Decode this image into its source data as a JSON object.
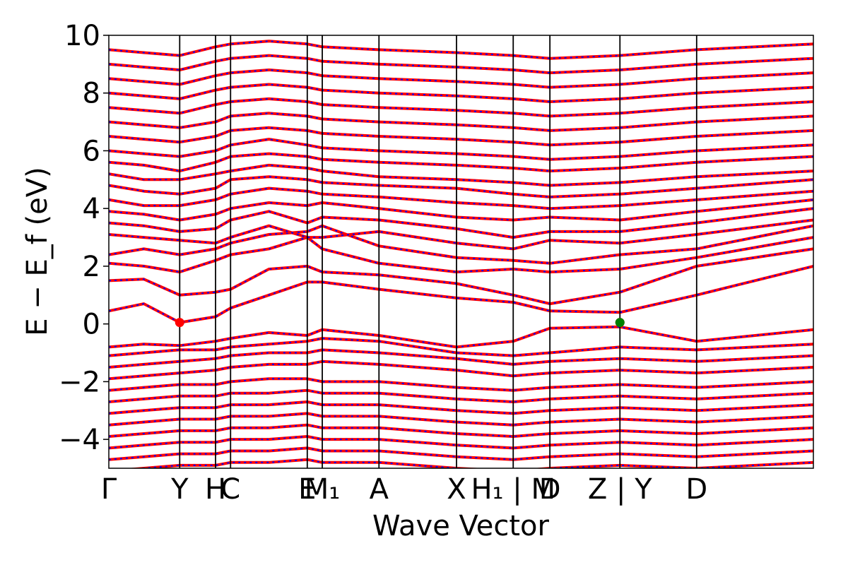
{
  "chart_data": {
    "type": "line",
    "title": "",
    "xlabel": "Wave Vector",
    "ylabel": "E − E_f (eV)",
    "ylim": [
      -5,
      10
    ],
    "yticks": [
      -4,
      -2,
      0,
      2,
      4,
      6,
      8,
      10
    ],
    "ytick_labels": [
      "−4",
      "−2",
      "0",
      "2",
      "4",
      "6",
      "8",
      "10"
    ],
    "xlim": [
      0,
      8.45
    ],
    "high_symmetry_points": [
      {
        "pos": 0.0,
        "label": "Γ"
      },
      {
        "pos": 0.85,
        "label": "Y"
      },
      {
        "pos": 1.28,
        "label": "H"
      },
      {
        "pos": 1.46,
        "label": "C"
      },
      {
        "pos": 2.38,
        "label": "E"
      },
      {
        "pos": 2.56,
        "label": "M₁"
      },
      {
        "pos": 3.24,
        "label": "A"
      },
      {
        "pos": 4.17,
        "label": "X"
      },
      {
        "pos": 4.85,
        "label": "H₁ | M"
      },
      {
        "pos": 5.29,
        "label": "D"
      },
      {
        "pos": 6.13,
        "label": "Z | Y"
      },
      {
        "pos": 7.05,
        "label": "D"
      }
    ],
    "series": [
      {
        "color": "#ff0000",
        "style": "solid"
      },
      {
        "color": "#0000ff",
        "style": "dotted"
      }
    ],
    "markers": [
      {
        "x": 0.85,
        "y": 0.05,
        "color": "#ff0000"
      },
      {
        "x": 6.13,
        "y": 0.05,
        "color": "#ff0000"
      },
      {
        "x": 6.13,
        "y": 0.05,
        "color": "#008000"
      }
    ],
    "bands": [
      {
        "e": [
          0.45,
          0.7,
          0.05,
          0.25,
          0.55,
          1.0,
          1.45,
          1.45,
          1.2,
          0.9,
          0.75,
          0.45,
          0.4,
          1.0,
          2.0
        ]
      },
      {
        "e": [
          1.5,
          1.55,
          1.0,
          1.1,
          1.2,
          1.9,
          2.0,
          1.8,
          1.7,
          1.4,
          1.0,
          0.7,
          1.1,
          2.0,
          2.6
        ]
      },
      {
        "e": [
          2.1,
          2.0,
          1.8,
          2.2,
          2.4,
          2.6,
          3.0,
          2.6,
          2.1,
          1.8,
          1.9,
          1.8,
          1.9,
          2.3,
          3.0
        ]
      },
      {
        "e": [
          2.4,
          2.6,
          2.4,
          2.6,
          2.8,
          3.1,
          3.2,
          3.4,
          2.7,
          2.3,
          2.2,
          2.1,
          2.4,
          2.6,
          3.4
        ]
      },
      {
        "e": [
          3.1,
          3.0,
          2.9,
          2.8,
          3.0,
          3.4,
          3.0,
          3.0,
          3.2,
          2.8,
          2.6,
          2.9,
          2.8,
          3.1,
          3.6
        ]
      },
      {
        "e": [
          3.5,
          3.4,
          3.2,
          3.3,
          3.6,
          3.9,
          3.5,
          3.7,
          3.6,
          3.3,
          3.0,
          3.2,
          3.2,
          3.5,
          4.0
        ]
      },
      {
        "e": [
          3.9,
          3.8,
          3.6,
          3.8,
          4.0,
          4.2,
          4.1,
          4.2,
          4.0,
          3.7,
          3.6,
          3.7,
          3.6,
          3.9,
          4.3
        ]
      },
      {
        "e": [
          4.3,
          4.1,
          4.1,
          4.3,
          4.5,
          4.7,
          4.6,
          4.5,
          4.4,
          4.2,
          4.1,
          4.0,
          4.1,
          4.3,
          4.6
        ]
      },
      {
        "e": [
          4.8,
          4.6,
          4.5,
          4.7,
          5.0,
          5.1,
          5.0,
          4.9,
          4.8,
          4.7,
          4.5,
          4.4,
          4.5,
          4.7,
          5.0
        ]
      },
      {
        "e": [
          5.2,
          5.0,
          5.0,
          5.2,
          5.3,
          5.5,
          5.4,
          5.3,
          5.1,
          5.0,
          4.9,
          4.8,
          4.9,
          5.1,
          5.3
        ]
      },
      {
        "e": [
          5.6,
          5.5,
          5.3,
          5.6,
          5.8,
          5.9,
          5.8,
          5.7,
          5.6,
          5.5,
          5.4,
          5.3,
          5.4,
          5.6,
          5.8
        ]
      },
      {
        "e": [
          6.0,
          5.9,
          5.8,
          6.0,
          6.2,
          6.4,
          6.2,
          6.1,
          6.0,
          5.9,
          5.8,
          5.7,
          5.8,
          6.0,
          6.2
        ]
      },
      {
        "e": [
          6.5,
          6.4,
          6.3,
          6.5,
          6.7,
          6.8,
          6.7,
          6.6,
          6.5,
          6.4,
          6.3,
          6.2,
          6.3,
          6.5,
          6.7
        ]
      },
      {
        "e": [
          7.0,
          6.9,
          6.8,
          7.0,
          7.2,
          7.3,
          7.2,
          7.1,
          7.0,
          6.9,
          6.8,
          6.7,
          6.8,
          7.0,
          7.2
        ]
      },
      {
        "e": [
          7.5,
          7.4,
          7.3,
          7.6,
          7.7,
          7.8,
          7.7,
          7.6,
          7.5,
          7.4,
          7.3,
          7.2,
          7.3,
          7.5,
          7.7
        ]
      },
      {
        "e": [
          8.0,
          7.9,
          7.8,
          8.1,
          8.2,
          8.3,
          8.2,
          8.1,
          8.0,
          7.9,
          7.8,
          7.7,
          7.8,
          8.0,
          8.2
        ]
      },
      {
        "e": [
          8.5,
          8.4,
          8.3,
          8.6,
          8.7,
          8.8,
          8.7,
          8.6,
          8.5,
          8.4,
          8.3,
          8.2,
          8.3,
          8.5,
          8.7
        ]
      },
      {
        "e": [
          9.0,
          8.9,
          8.8,
          9.1,
          9.2,
          9.3,
          9.2,
          9.1,
          9.0,
          8.9,
          8.8,
          8.7,
          8.8,
          9.0,
          9.2
        ]
      },
      {
        "e": [
          9.5,
          9.4,
          9.3,
          9.6,
          9.7,
          9.8,
          9.7,
          9.6,
          9.5,
          9.4,
          9.3,
          9.2,
          9.3,
          9.5,
          9.7
        ]
      },
      {
        "e": [
          -0.8,
          -0.7,
          -0.75,
          -0.6,
          -0.5,
          -0.3,
          -0.4,
          -0.2,
          -0.4,
          -0.8,
          -0.6,
          -0.15,
          -0.1,
          -0.6,
          -0.2
        ]
      },
      {
        "e": [
          -1.1,
          -1.0,
          -0.9,
          -0.9,
          -0.8,
          -0.7,
          -0.6,
          -0.5,
          -0.6,
          -1.0,
          -1.1,
          -1.0,
          -0.8,
          -0.9,
          -0.7
        ]
      },
      {
        "e": [
          -1.5,
          -1.4,
          -1.3,
          -1.2,
          -1.1,
          -1.0,
          -1.0,
          -0.9,
          -1.0,
          -1.2,
          -1.4,
          -1.3,
          -1.2,
          -1.3,
          -1.1
        ]
      },
      {
        "e": [
          -1.9,
          -1.8,
          -1.7,
          -1.6,
          -1.5,
          -1.4,
          -1.4,
          -1.3,
          -1.4,
          -1.6,
          -1.8,
          -1.7,
          -1.6,
          -1.7,
          -1.5
        ]
      },
      {
        "e": [
          -2.3,
          -2.2,
          -2.1,
          -2.1,
          -2.0,
          -1.9,
          -1.9,
          -2.0,
          -2.0,
          -2.2,
          -2.3,
          -2.2,
          -2.1,
          -2.2,
          -2.0
        ]
      },
      {
        "e": [
          -2.7,
          -2.6,
          -2.5,
          -2.5,
          -2.4,
          -2.4,
          -2.3,
          -2.4,
          -2.4,
          -2.6,
          -2.7,
          -2.6,
          -2.5,
          -2.6,
          -2.4
        ]
      },
      {
        "e": [
          -3.1,
          -3.0,
          -2.9,
          -2.9,
          -2.8,
          -2.8,
          -2.7,
          -2.8,
          -2.8,
          -3.0,
          -3.1,
          -3.0,
          -2.9,
          -3.0,
          -2.8
        ]
      },
      {
        "e": [
          -3.5,
          -3.4,
          -3.3,
          -3.3,
          -3.2,
          -3.2,
          -3.1,
          -3.2,
          -3.2,
          -3.4,
          -3.5,
          -3.4,
          -3.3,
          -3.4,
          -3.2
        ]
      },
      {
        "e": [
          -3.9,
          -3.8,
          -3.7,
          -3.7,
          -3.6,
          -3.6,
          -3.5,
          -3.6,
          -3.6,
          -3.8,
          -3.9,
          -3.8,
          -3.7,
          -3.8,
          -3.6
        ]
      },
      {
        "e": [
          -4.3,
          -4.2,
          -4.1,
          -4.1,
          -4.0,
          -4.0,
          -3.9,
          -4.0,
          -4.0,
          -4.2,
          -4.3,
          -4.2,
          -4.1,
          -4.2,
          -4.0
        ]
      },
      {
        "e": [
          -4.7,
          -4.6,
          -4.5,
          -4.5,
          -4.4,
          -4.4,
          -4.3,
          -4.4,
          -4.4,
          -4.6,
          -4.7,
          -4.6,
          -4.5,
          -4.6,
          -4.4
        ]
      },
      {
        "e": [
          -5.1,
          -5.0,
          -4.9,
          -4.9,
          -4.8,
          -4.8,
          -4.7,
          -4.8,
          -4.8,
          -5.0,
          -5.1,
          -5.0,
          -4.9,
          -5.0,
          -4.8
        ]
      }
    ],
    "band_k": [
      0.0,
      0.42,
      0.85,
      1.28,
      1.46,
      1.92,
      2.38,
      2.56,
      3.24,
      4.17,
      4.85,
      5.29,
      6.13,
      7.05,
      8.45
    ],
    "grid": false,
    "legend": "none"
  }
}
